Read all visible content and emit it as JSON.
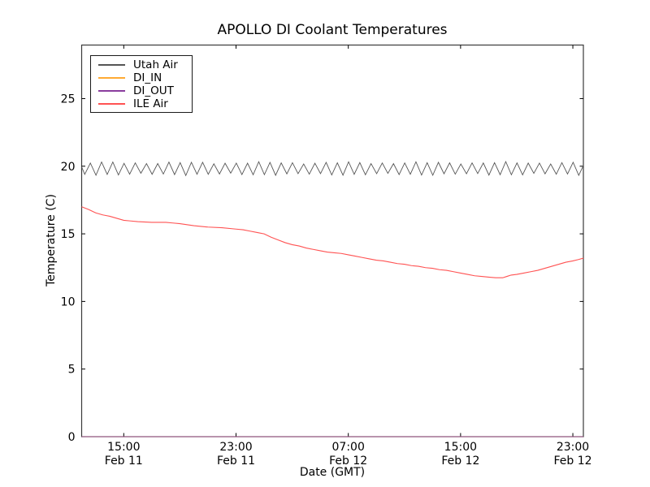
{
  "figure": {
    "title": "APOLLO DI Coolant Temperatures"
  },
  "chart_data": {
    "type": "line",
    "title": "APOLLO DI Coolant Temperatures",
    "xlabel": "Date (GMT)",
    "ylabel": "Temperature (C)",
    "grid": false,
    "legend_position": "upper left",
    "ylim": [
      0,
      28.96
    ],
    "y_ticks": [
      0,
      5,
      10,
      15,
      20,
      25
    ],
    "x_hours_range": [
      0,
      35.75
    ],
    "x_range_note": "hours measured from Feb 11 12:00 GMT (left edge) to Feb 12 23:45 GMT (right edge)",
    "x_ticks": [
      {
        "hour": 3,
        "time": "15:00",
        "date": "Feb 11"
      },
      {
        "hour": 11,
        "time": "23:00",
        "date": "Feb 11"
      },
      {
        "hour": 19,
        "time": "07:00",
        "date": "Feb 12"
      },
      {
        "hour": 27,
        "time": "15:00",
        "date": "Feb 12"
      },
      {
        "hour": 35,
        "time": "23:00",
        "date": "Feb 12"
      }
    ],
    "series": [
      {
        "name": "Utah Air",
        "color": "#555555",
        "line_width": 0.9,
        "style": "oscillating",
        "oscillation": {
          "description": "rapid thermostat-cycling zigzag around 19.8 C",
          "trough": 19.4,
          "peak": 20.25,
          "period_hours": 0.8,
          "start_value": 19.95,
          "end_value": 20.05
        },
        "points": []
      },
      {
        "name": "DI_IN",
        "color": "#ffaa33",
        "line_width": 1,
        "style": "flat-at-zero",
        "points": [
          [
            0,
            0
          ],
          [
            35.75,
            0
          ]
        ]
      },
      {
        "name": "DI_OUT",
        "color": "#8a3d9e",
        "line_width": 1,
        "style": "flat-at-zero",
        "points": [
          [
            0,
            0
          ],
          [
            35.75,
            0
          ]
        ]
      },
      {
        "name": "ILE Air",
        "color": "#ff5252",
        "line_width": 1.1,
        "style": "smooth",
        "points": [
          [
            0,
            17.0
          ],
          [
            0.5,
            16.8
          ],
          [
            1,
            16.55
          ],
          [
            1.5,
            16.4
          ],
          [
            2,
            16.3
          ],
          [
            2.5,
            16.15
          ],
          [
            3,
            16.0
          ],
          [
            3.5,
            15.95
          ],
          [
            4,
            15.9
          ],
          [
            5,
            15.85
          ],
          [
            6,
            15.85
          ],
          [
            6.5,
            15.8
          ],
          [
            7,
            15.75
          ],
          [
            8,
            15.6
          ],
          [
            9,
            15.5
          ],
          [
            10,
            15.45
          ],
          [
            11,
            15.35
          ],
          [
            11.5,
            15.3
          ],
          [
            12,
            15.2
          ],
          [
            12.5,
            15.1
          ],
          [
            13,
            15.0
          ],
          [
            13.5,
            14.75
          ],
          [
            14,
            14.55
          ],
          [
            14.5,
            14.35
          ],
          [
            15,
            14.2
          ],
          [
            15.5,
            14.1
          ],
          [
            16,
            13.95
          ],
          [
            16.5,
            13.85
          ],
          [
            17,
            13.75
          ],
          [
            17.5,
            13.65
          ],
          [
            18,
            13.6
          ],
          [
            18.5,
            13.55
          ],
          [
            19,
            13.45
          ],
          [
            19.5,
            13.35
          ],
          [
            20,
            13.25
          ],
          [
            20.5,
            13.15
          ],
          [
            21,
            13.05
          ],
          [
            21.5,
            13.0
          ],
          [
            22,
            12.9
          ],
          [
            22.5,
            12.8
          ],
          [
            23,
            12.75
          ],
          [
            23.5,
            12.65
          ],
          [
            24,
            12.6
          ],
          [
            24.5,
            12.5
          ],
          [
            25,
            12.45
          ],
          [
            25.5,
            12.35
          ],
          [
            26,
            12.3
          ],
          [
            26.5,
            12.2
          ],
          [
            27,
            12.1
          ],
          [
            27.5,
            12.0
          ],
          [
            28,
            11.9
          ],
          [
            28.5,
            11.85
          ],
          [
            29,
            11.8
          ],
          [
            29.5,
            11.75
          ],
          [
            30,
            11.75
          ],
          [
            30.3,
            11.85
          ],
          [
            30.6,
            11.95
          ],
          [
            31,
            12.0
          ],
          [
            31.5,
            12.1
          ],
          [
            32,
            12.2
          ],
          [
            32.5,
            12.3
          ],
          [
            33,
            12.45
          ],
          [
            33.5,
            12.6
          ],
          [
            34,
            12.75
          ],
          [
            34.5,
            12.9
          ],
          [
            35,
            13.0
          ],
          [
            35.4,
            13.1
          ],
          [
            35.75,
            13.2
          ]
        ]
      }
    ],
    "frame_color": "#3a3a3a"
  }
}
